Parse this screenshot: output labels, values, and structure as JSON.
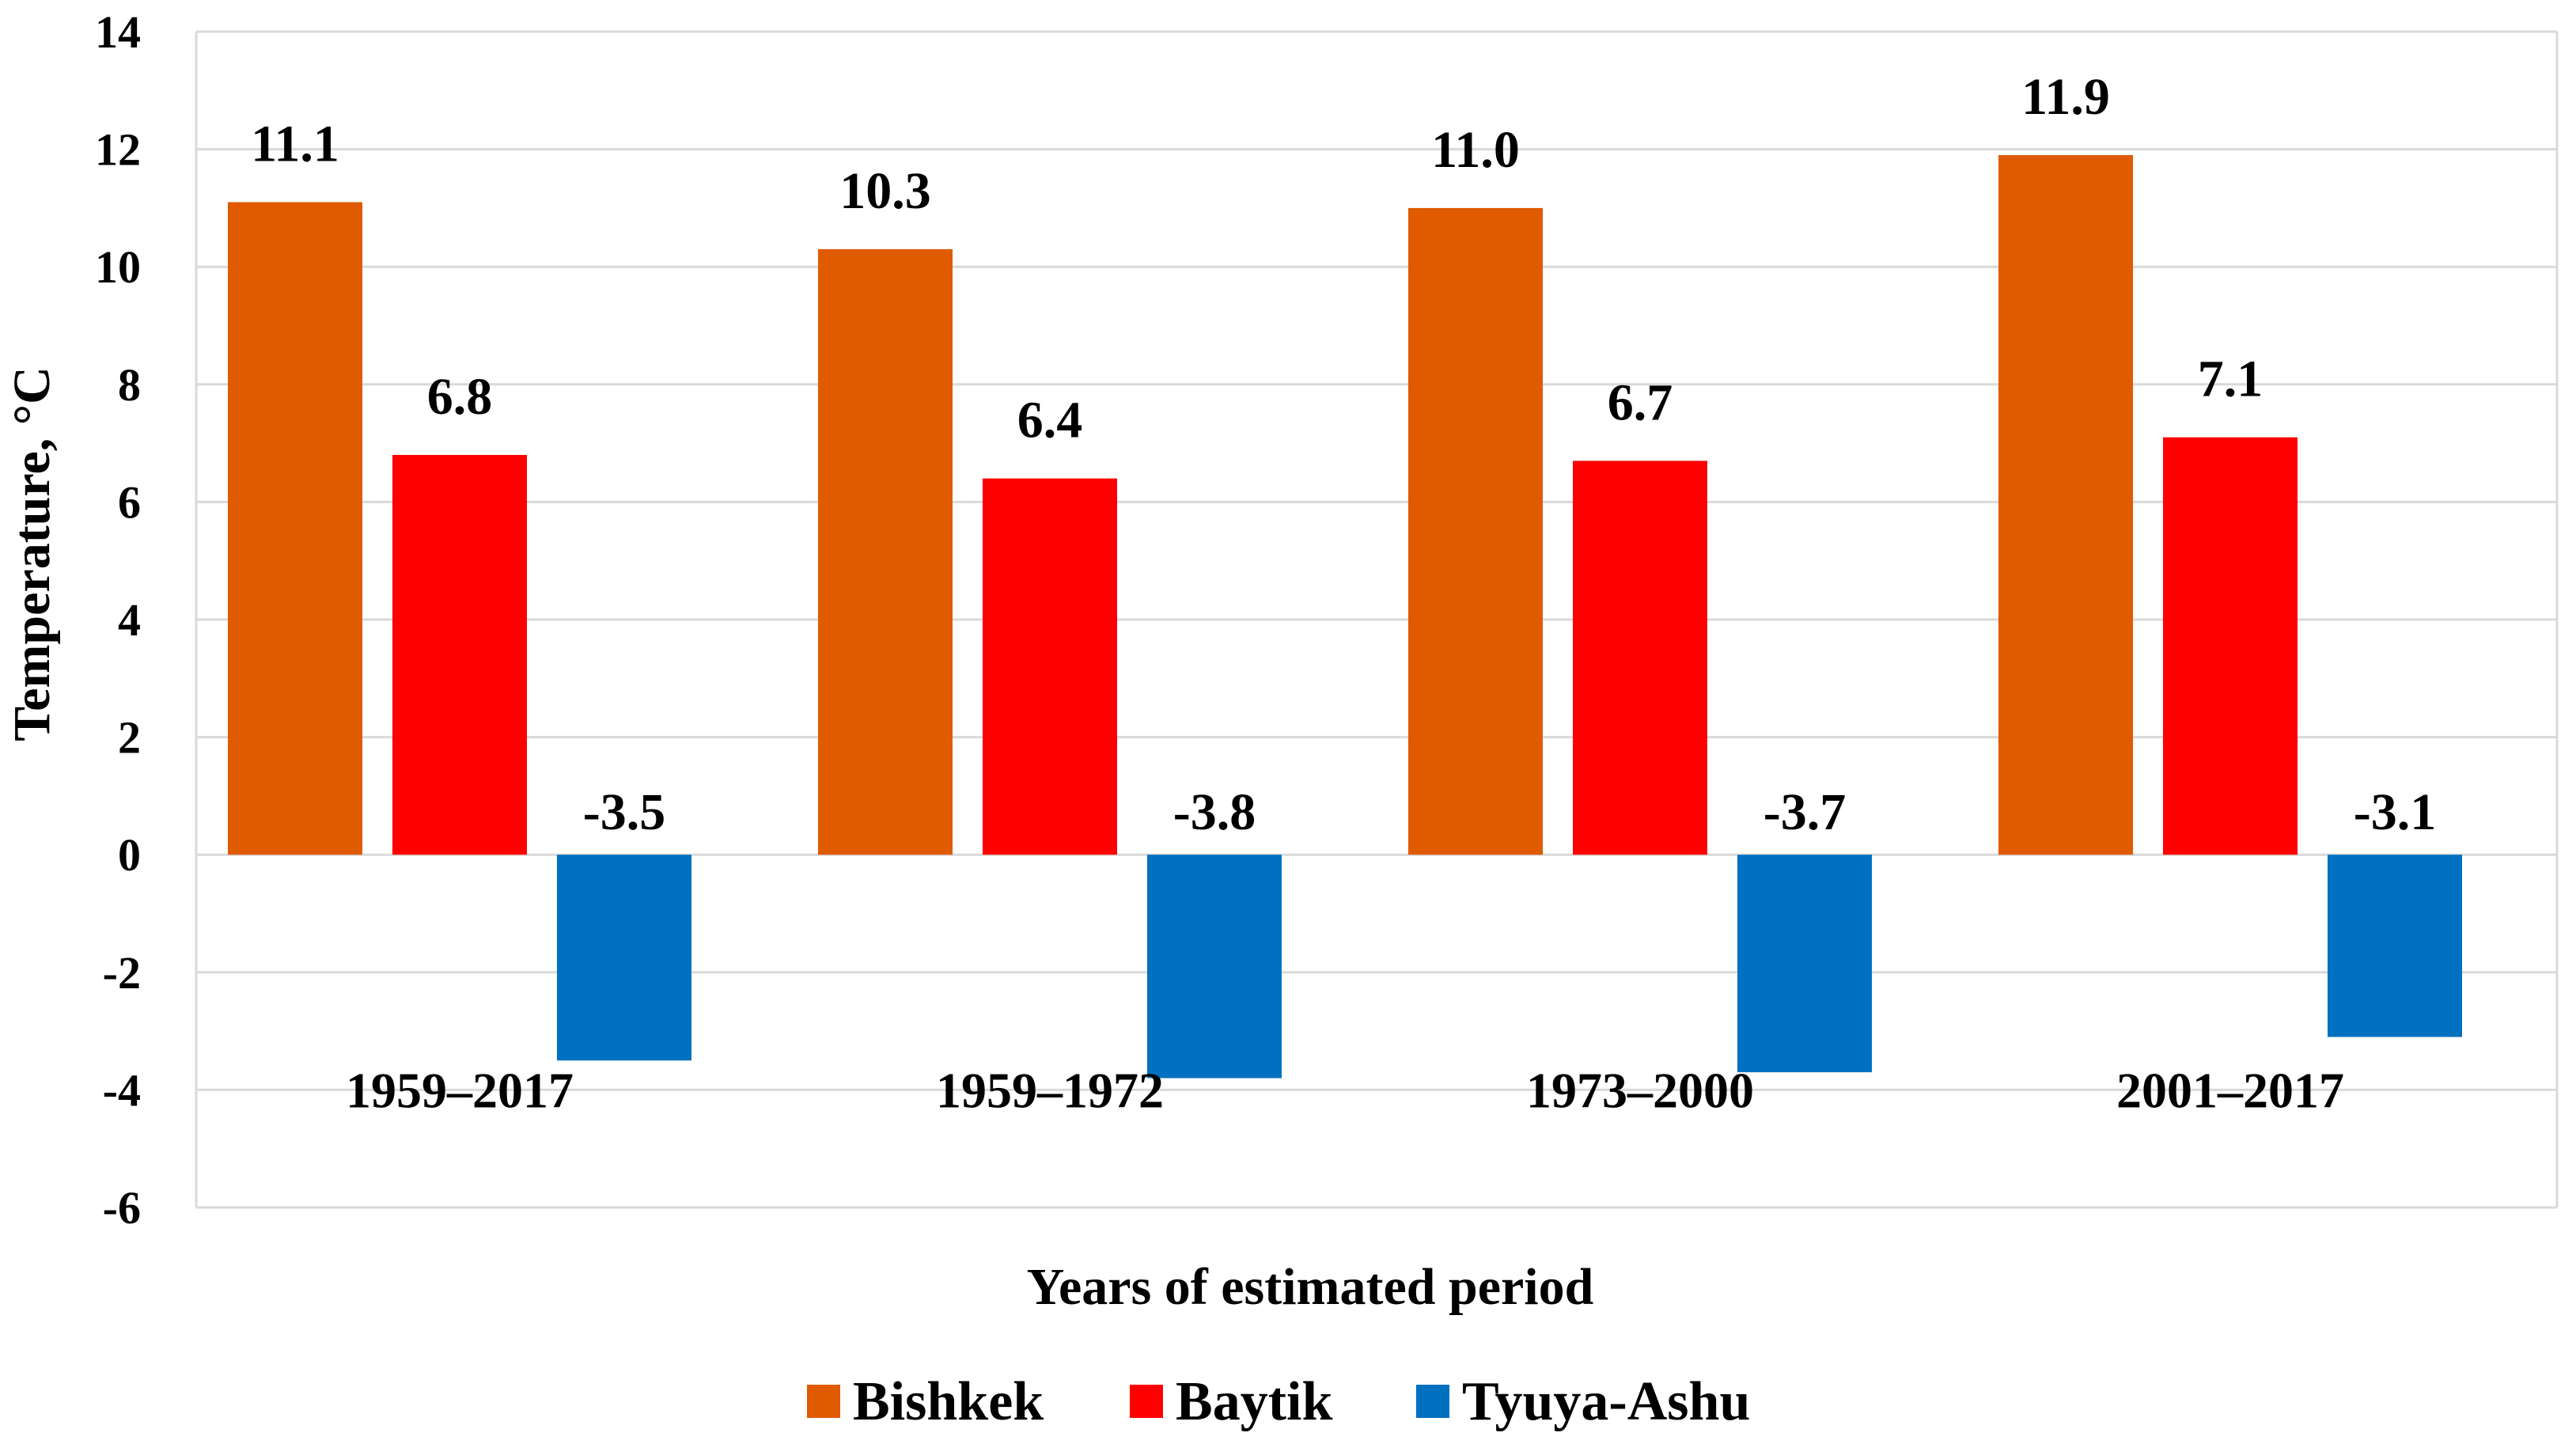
{
  "chart_data": {
    "type": "bar",
    "title": "",
    "xlabel": "Years of estimated period",
    "ylabel": "Temperature, °C",
    "ylim": [
      -6,
      14
    ],
    "yticks": [
      14,
      12,
      10,
      8,
      6,
      4,
      2,
      0,
      -2,
      -4,
      -6
    ],
    "categories": [
      "1959–2017",
      "1959–1972",
      "1973–2000",
      "2001–2017"
    ],
    "series": [
      {
        "name": "Bishkek",
        "color": "#e05a00",
        "values": [
          11.1,
          10.3,
          11.0,
          11.9
        ],
        "labels": [
          "11.1",
          "10.3",
          "11.0",
          "11.9"
        ]
      },
      {
        "name": "Baytik",
        "color": "#ff0000",
        "values": [
          6.8,
          6.4,
          6.7,
          7.1
        ],
        "labels": [
          "6.8",
          "6.4",
          "6.7",
          "7.1"
        ]
      },
      {
        "name": "Tyuya-Ashu",
        "color": "#0070c0",
        "values": [
          -3.5,
          -3.8,
          -3.7,
          -3.1
        ],
        "labels": [
          "-3.5",
          "-3.8",
          "-3.7",
          "-3.1"
        ]
      }
    ],
    "grid": true,
    "legend_position": "bottom"
  }
}
